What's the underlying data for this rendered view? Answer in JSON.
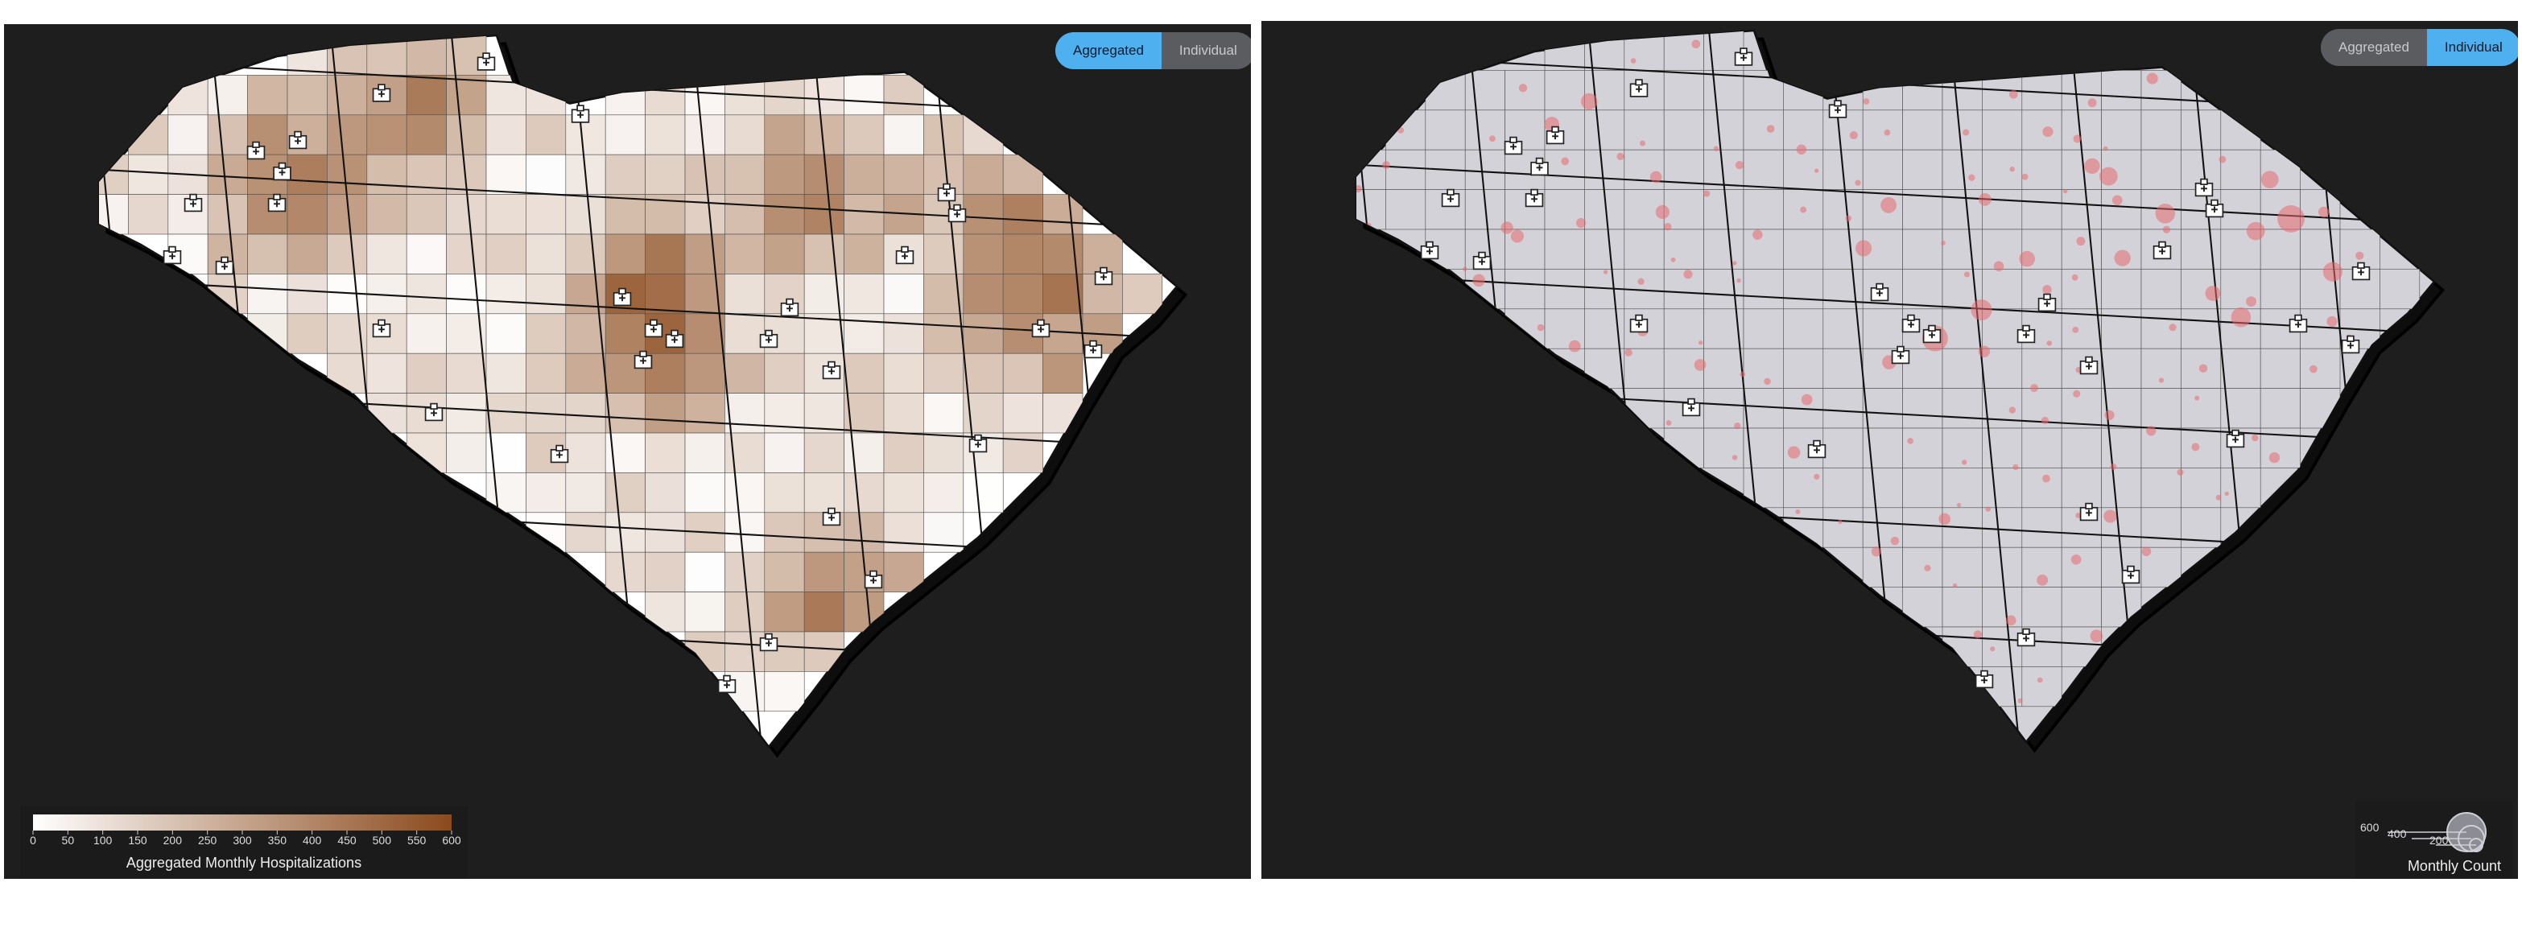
{
  "left_panel": {
    "toggle": {
      "aggregated_label": "Aggregated",
      "individual_label": "Individual",
      "active": "Aggregated"
    },
    "legend": {
      "title": "Aggregated Monthly Hospitalizations",
      "ticks": [
        "0",
        "50",
        "100",
        "150",
        "200",
        "250",
        "300",
        "350",
        "400",
        "450",
        "500",
        "550",
        "600"
      ],
      "color_low": "#ffffff",
      "color_high": "#8b4a1c"
    }
  },
  "right_panel": {
    "toggle": {
      "aggregated_label": "Aggregated",
      "individual_label": "Individual",
      "active": "Individual"
    },
    "legend": {
      "title": "Monthly Count",
      "sizes": [
        "600",
        "400",
        "200"
      ]
    }
  },
  "colors": {
    "background": "#1e1e1e",
    "map_fill_right": "#d3d2d9",
    "bubble": "#e5696b",
    "accent": "#4fb0f0"
  },
  "icons": {
    "hospital": "hospital-icon"
  }
}
